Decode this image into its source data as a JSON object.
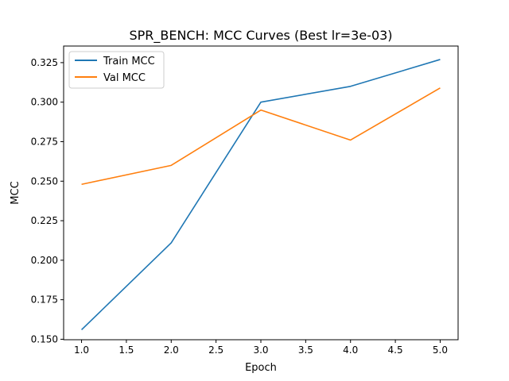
{
  "chart_data": {
    "type": "line",
    "title": "SPR_BENCH: MCC Curves (Best lr=3e-03)",
    "xlabel": "Epoch",
    "ylabel": "MCC",
    "x": [
      1.0,
      2.0,
      3.0,
      4.0,
      5.0
    ],
    "xlim": [
      0.8,
      5.2
    ],
    "ylim": [
      0.1497,
      0.3355
    ],
    "xticks": [
      "1.0",
      "1.5",
      "2.0",
      "2.5",
      "3.0",
      "3.5",
      "4.0",
      "4.5",
      "5.0"
    ],
    "yticks": [
      "0.150",
      "0.175",
      "0.200",
      "0.225",
      "0.250",
      "0.275",
      "0.300",
      "0.325"
    ],
    "grid": false,
    "legend_position": "top-left",
    "series": [
      {
        "name": "Train MCC",
        "color": "#1f77b4",
        "values": [
          0.156,
          0.211,
          0.3,
          0.31,
          0.327
        ]
      },
      {
        "name": "Val MCC",
        "color": "#ff7f0e",
        "values": [
          0.248,
          0.26,
          0.295,
          0.276,
          0.309
        ]
      }
    ]
  }
}
